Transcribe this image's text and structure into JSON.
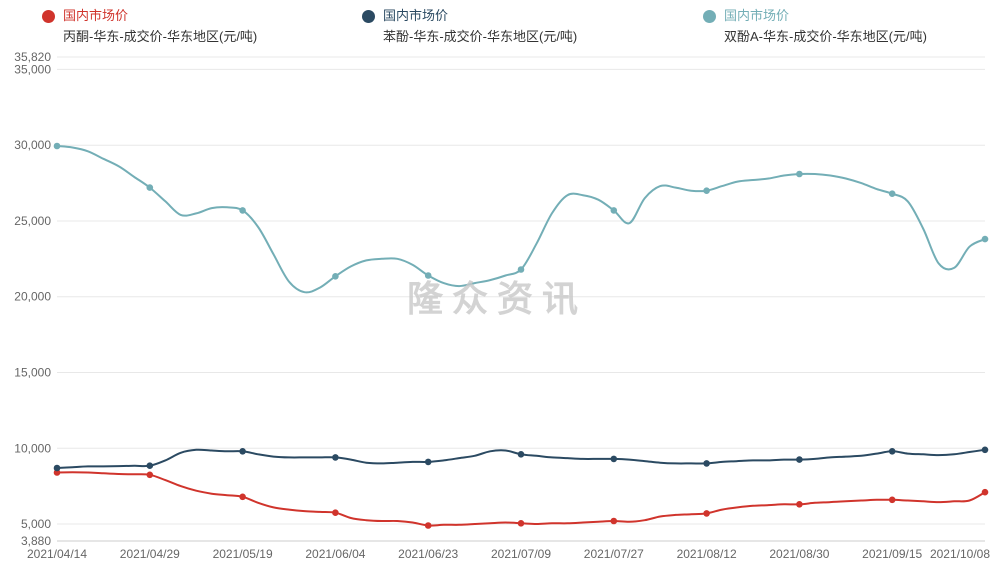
{
  "chart_data": {
    "type": "line",
    "title": "",
    "watermark": "隆众资讯",
    "legend_position": "top",
    "grid": true,
    "ylim": [
      3880,
      35820
    ],
    "yticks": [
      {
        "value": 3880,
        "label": "3,880"
      },
      {
        "value": 5000,
        "label": "5,000"
      },
      {
        "value": 10000,
        "label": "10,000"
      },
      {
        "value": 15000,
        "label": "15,000"
      },
      {
        "value": 20000,
        "label": "20,000"
      },
      {
        "value": 25000,
        "label": "25,000"
      },
      {
        "value": 30000,
        "label": "30,000"
      },
      {
        "value": 35000,
        "label": "35,000"
      },
      {
        "value": 35820,
        "label": "35,820"
      }
    ],
    "xticklabels": [
      "2021/04/14",
      "2021/04/29",
      "2021/05/19",
      "2021/06/04",
      "2021/06/23",
      "2021/07/09",
      "2021/07/27",
      "2021/08/12",
      "2021/08/30",
      "2021/09/15",
      "2021/10/08"
    ],
    "xtick_indices": [
      0,
      6,
      12,
      18,
      24,
      30,
      36,
      42,
      48,
      54,
      60
    ],
    "marker_indices": [
      0,
      6,
      12,
      18,
      24,
      30,
      36,
      42,
      48,
      54,
      60
    ],
    "axis_color": "#cccccc",
    "gridline_color": "#e8e8e8",
    "series": [
      {
        "group": "国内市场价",
        "name": "丙酮-华东-成交价-华东地区(元/吨)",
        "color": "#d0342c",
        "values": [
          8400,
          8420,
          8400,
          8350,
          8300,
          8280,
          8250,
          7900,
          7500,
          7200,
          7000,
          6900,
          6800,
          6400,
          6100,
          5950,
          5850,
          5800,
          5750,
          5400,
          5250,
          5200,
          5200,
          5100,
          4900,
          4950,
          4950,
          5000,
          5050,
          5100,
          5050,
          5000,
          5050,
          5050,
          5100,
          5150,
          5200,
          5150,
          5250,
          5500,
          5600,
          5650,
          5700,
          5950,
          6100,
          6200,
          6250,
          6300,
          6300,
          6400,
          6450,
          6500,
          6550,
          6600,
          6600,
          6550,
          6500,
          6450,
          6500,
          6550,
          7100
        ]
      },
      {
        "group": "国内市场价",
        "name": "苯酚-华东-成交价-华东地区(元/吨)",
        "color": "#2b4a62",
        "values": [
          8700,
          8750,
          8800,
          8800,
          8820,
          8840,
          8850,
          9200,
          9700,
          9900,
          9850,
          9800,
          9800,
          9600,
          9450,
          9400,
          9400,
          9400,
          9400,
          9250,
          9050,
          9000,
          9050,
          9100,
          9100,
          9200,
          9350,
          9500,
          9800,
          9850,
          9600,
          9500,
          9400,
          9350,
          9300,
          9300,
          9300,
          9250,
          9150,
          9050,
          9000,
          9000,
          9000,
          9100,
          9150,
          9200,
          9200,
          9250,
          9250,
          9300,
          9400,
          9450,
          9500,
          9650,
          9800,
          9650,
          9600,
          9550,
          9600,
          9750,
          9900
        ]
      },
      {
        "group": "国内市场价",
        "name": "双酚A-华东-成交价-华东地区(元/吨)",
        "color": "#73aeb6",
        "values": [
          29950,
          29850,
          29600,
          29100,
          28600,
          27900,
          27200,
          26300,
          25400,
          25500,
          25850,
          25900,
          25700,
          24600,
          22800,
          21000,
          20300,
          20600,
          21350,
          22000,
          22400,
          22500,
          22500,
          22100,
          21400,
          20900,
          20700,
          20900,
          21100,
          21400,
          21800,
          23500,
          25500,
          26700,
          26700,
          26400,
          25700,
          24850,
          26500,
          27300,
          27200,
          27000,
          27000,
          27300,
          27600,
          27700,
          27800,
          28000,
          28100,
          28100,
          28000,
          27800,
          27500,
          27100,
          26800,
          26300,
          24500,
          22200,
          21900,
          23300,
          23800
        ]
      }
    ]
  }
}
